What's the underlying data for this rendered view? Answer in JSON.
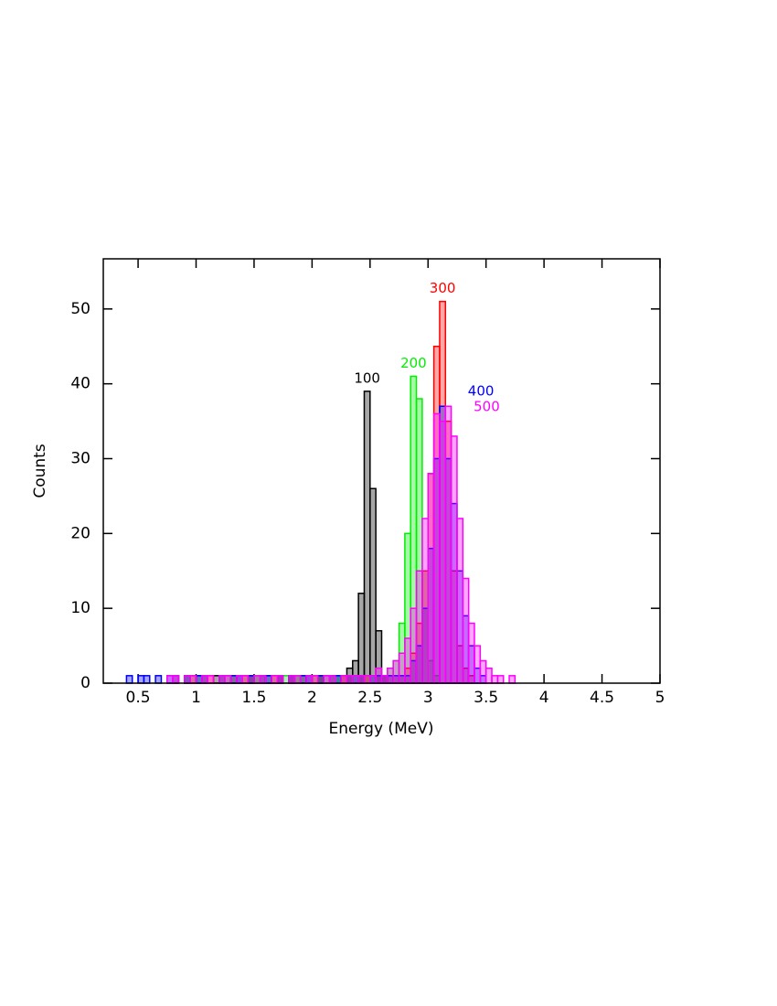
{
  "chart_data": {
    "type": "histogram",
    "xlabel": "Energy (MeV)",
    "ylabel": "Counts",
    "bins": [
      0.4,
      0.45,
      0.5,
      0.55,
      0.6,
      0.65,
      0.7,
      0.75,
      0.8,
      0.85,
      0.9,
      0.95,
      1.0,
      1.05,
      1.1,
      1.15,
      1.2,
      1.25,
      1.3,
      1.35,
      1.4,
      1.45,
      1.5,
      1.55,
      1.6,
      1.65,
      1.7,
      1.75,
      1.8,
      1.85,
      1.9,
      1.95,
      2.0,
      2.05,
      2.1,
      2.15,
      2.2,
      2.25,
      2.3,
      2.35,
      2.4,
      2.45,
      2.5,
      2.55,
      2.6,
      2.65,
      2.7,
      2.75,
      2.8,
      2.85,
      2.9,
      2.95,
      3.0,
      3.05,
      3.1,
      3.15,
      3.2,
      3.25,
      3.3,
      3.35,
      3.4,
      3.45,
      3.5,
      3.55,
      3.6,
      3.65,
      3.7,
      3.75,
      3.8
    ],
    "series": [
      {
        "name": "100",
        "color": "#000000",
        "values": [
          0,
          0,
          0,
          0,
          0,
          0,
          0,
          0,
          0,
          0,
          1,
          0,
          1,
          0,
          0,
          1,
          0,
          1,
          0,
          1,
          0,
          1,
          1,
          0,
          1,
          0,
          1,
          0,
          1,
          1,
          0,
          1,
          0,
          1,
          1,
          0,
          1,
          1,
          2,
          3,
          12,
          39,
          26,
          7,
          1,
          0,
          0,
          0,
          0,
          0,
          0,
          0,
          0,
          0,
          0,
          0,
          0,
          0,
          0,
          0,
          0,
          0,
          0,
          0,
          0,
          0,
          0,
          0
        ]
      },
      {
        "name": "200",
        "color": "#00ee00",
        "values": [
          0,
          0,
          0,
          0,
          0,
          0,
          0,
          0,
          0,
          0,
          1,
          1,
          0,
          1,
          0,
          0,
          1,
          0,
          1,
          0,
          1,
          0,
          1,
          1,
          0,
          1,
          0,
          1,
          0,
          1,
          1,
          0,
          1,
          1,
          0,
          1,
          1,
          0,
          1,
          1,
          1,
          1,
          1,
          1,
          1,
          2,
          3,
          8,
          20,
          41,
          38,
          15,
          3,
          1,
          0,
          0,
          0,
          0,
          0,
          0,
          0,
          0,
          0,
          0,
          0,
          0,
          0,
          0
        ]
      },
      {
        "name": "300",
        "color": "#ff0000",
        "values": [
          0,
          0,
          0,
          0,
          0,
          0,
          0,
          0,
          1,
          0,
          0,
          1,
          0,
          1,
          1,
          0,
          1,
          0,
          1,
          0,
          1,
          1,
          0,
          1,
          0,
          1,
          1,
          0,
          1,
          0,
          1,
          0,
          1,
          1,
          0,
          1,
          0,
          1,
          1,
          0,
          1,
          1,
          0,
          1,
          1,
          1,
          1,
          1,
          2,
          4,
          8,
          15,
          28,
          45,
          51,
          35,
          15,
          5,
          2,
          1,
          0,
          0,
          0,
          0,
          0,
          0,
          0,
          0
        ]
      },
      {
        "name": "400",
        "color": "#0000ff",
        "values": [
          1,
          0,
          1,
          1,
          0,
          1,
          0,
          1,
          1,
          0,
          1,
          0,
          1,
          1,
          0,
          0,
          1,
          0,
          1,
          1,
          0,
          1,
          0,
          1,
          1,
          0,
          1,
          0,
          1,
          0,
          1,
          1,
          0,
          1,
          0,
          1,
          1,
          0,
          1,
          1,
          1,
          0,
          1,
          1,
          1,
          1,
          1,
          1,
          1,
          3,
          5,
          10,
          18,
          30,
          37,
          30,
          24,
          15,
          9,
          5,
          2,
          1,
          0,
          0,
          0,
          0,
          0,
          0
        ]
      },
      {
        "name": "500",
        "color": "#ff00ff",
        "values": [
          0,
          0,
          0,
          0,
          0,
          0,
          0,
          1,
          1,
          0,
          1,
          1,
          0,
          1,
          1,
          0,
          1,
          1,
          0,
          1,
          1,
          0,
          1,
          1,
          0,
          1,
          1,
          0,
          1,
          1,
          0,
          1,
          1,
          0,
          1,
          1,
          0,
          1,
          1,
          1,
          1,
          1,
          1,
          2,
          1,
          2,
          3,
          4,
          6,
          10,
          15,
          22,
          28,
          36,
          35,
          37,
          33,
          22,
          14,
          8,
          5,
          3,
          2,
          1,
          1,
          0,
          1,
          0
        ]
      }
    ],
    "xlim": [
      0.2,
      5.0
    ],
    "ylim": [
      0,
      56.7
    ],
    "xticks": [
      0.5,
      1,
      1.5,
      2,
      2.5,
      3,
      3.5,
      4,
      4.5,
      5
    ],
    "yticks": [
      0,
      10,
      20,
      30,
      40,
      50
    ]
  }
}
